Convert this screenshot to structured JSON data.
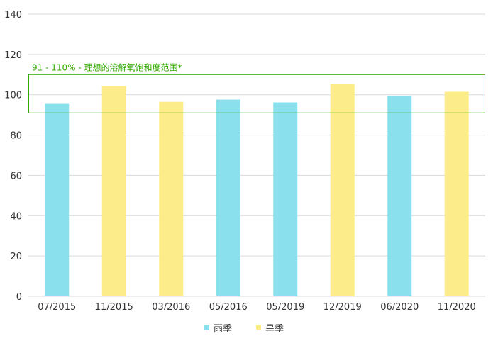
{
  "chart_data": {
    "type": "bar",
    "categories": [
      "07/2015",
      "11/2015",
      "03/2016",
      "05/2016",
      "05/2019",
      "12/2019",
      "06/2020",
      "11/2020"
    ],
    "values": [
      95.5,
      104.3,
      96.5,
      97.6,
      96.2,
      105.3,
      99.3,
      101.5
    ],
    "season": [
      "rainy",
      "dry",
      "dry",
      "rainy",
      "rainy",
      "dry",
      "rainy",
      "dry"
    ],
    "series": [
      {
        "key": "rainy",
        "name": "雨季",
        "color": "#8ae0ec"
      },
      {
        "key": "dry",
        "name": "旱季",
        "color": "#fded8a"
      }
    ],
    "ylim": [
      0,
      140
    ],
    "yticks": [
      0,
      20,
      40,
      60,
      80,
      100,
      120,
      140
    ],
    "grid": true,
    "legend_position": "bottom-center",
    "reference_band": {
      "range": [
        91,
        110
      ],
      "label": "91 - 110% - 理想的溶解氧饱和度范围*",
      "color": "#33aa00"
    }
  }
}
